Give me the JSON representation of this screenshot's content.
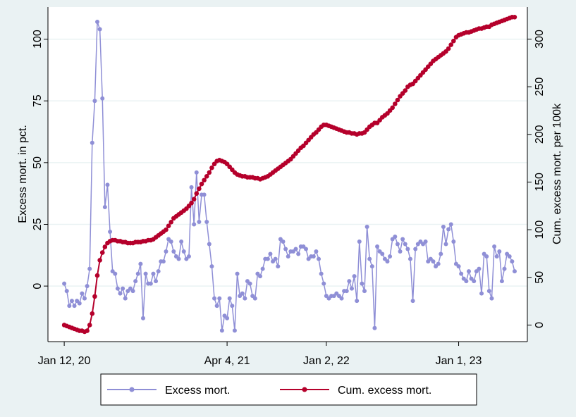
{
  "chart_data": {
    "type": "line",
    "y_axis_label": "Excess mort. in pct.",
    "y2_axis_label": "Cum. excess mort. per 100k",
    "x": [
      0,
      1,
      2,
      3,
      4,
      5,
      6,
      7,
      8,
      9,
      10,
      11,
      12,
      13,
      14,
      15,
      16,
      17,
      18,
      19,
      20,
      21,
      22,
      23,
      24,
      25,
      26,
      27,
      28,
      29,
      30,
      31,
      32,
      33,
      34,
      35,
      36,
      37,
      38,
      39,
      40,
      41,
      42,
      43,
      44,
      45,
      46,
      47,
      48,
      49,
      50,
      51,
      52,
      53,
      54,
      55,
      56,
      57,
      58,
      59,
      60,
      61,
      62,
      63,
      64,
      65,
      66,
      67,
      68,
      69,
      70,
      71,
      72,
      73,
      74,
      75,
      76,
      77,
      78,
      79,
      80,
      81,
      82,
      83,
      84,
      85,
      86,
      87,
      88,
      89,
      90,
      91,
      92,
      93,
      94,
      95,
      96,
      97,
      98,
      99,
      100,
      101,
      102,
      103,
      104,
      105,
      106,
      107,
      108,
      109,
      110,
      111,
      112,
      113,
      114,
      115,
      116,
      117,
      118,
      119,
      120,
      121,
      122,
      123,
      124,
      125,
      126,
      127,
      128,
      129,
      130,
      131,
      132,
      133,
      134,
      135,
      136,
      137,
      138,
      139,
      140,
      141,
      142,
      143,
      144,
      145,
      146,
      147,
      148,
      149,
      150,
      151,
      152,
      153,
      154,
      155,
      156,
      157,
      158,
      159,
      160,
      161,
      162,
      163,
      164,
      165,
      166,
      167,
      168,
      169,
      170,
      171,
      172,
      173,
      174,
      175,
      176,
      177
    ],
    "xlim": [
      -6.4,
      182
    ],
    "xticks": [
      {
        "value": 0,
        "label": "Jan 12, 20"
      },
      {
        "value": 64,
        "label": "Apr 4, 21"
      },
      {
        "value": 103,
        "label": "Jan 2, 22"
      },
      {
        "value": 155,
        "label": "Jan 1, 23"
      }
    ],
    "ylim": [
      -22.5,
      113
    ],
    "yticks": [
      0,
      25,
      50,
      75,
      100
    ],
    "y2lim": [
      -17.4,
      333.6
    ],
    "y2ticks": [
      0,
      50,
      100,
      150,
      200,
      250,
      300
    ],
    "grid": true,
    "legend_position": "bottom",
    "series": [
      {
        "name": "Excess mort.",
        "color": "#8f8fd6",
        "axis": "y",
        "values": [
          1,
          -2,
          -8,
          -6,
          -8,
          -6,
          -7,
          -3,
          -5,
          0,
          7,
          58,
          75,
          107,
          104,
          76,
          32,
          41,
          22,
          6,
          5,
          -1,
          -3,
          -1,
          -5,
          -2,
          -1,
          -2,
          2,
          5,
          9,
          -13,
          5,
          1,
          1,
          5,
          2,
          6,
          10,
          10,
          14,
          19,
          18,
          14,
          12,
          11,
          18,
          14,
          11,
          12,
          40,
          25,
          46,
          26,
          37,
          37,
          26,
          17,
          8,
          -5,
          -8,
          -5,
          -18,
          -12,
          -13,
          -5,
          -8,
          -18,
          5,
          -4,
          -3,
          -5,
          2,
          1,
          -4,
          -5,
          5,
          4,
          7,
          11,
          11,
          13,
          10,
          11,
          8,
          19,
          18,
          15,
          12,
          14,
          14,
          15,
          13,
          16,
          16,
          15,
          11,
          12,
          12,
          14,
          11,
          5,
          1,
          -4,
          -5,
          -4,
          -4,
          -3,
          -4,
          -5,
          -2,
          -2,
          2,
          -1,
          4,
          -6,
          18,
          1,
          -2,
          24,
          11,
          8,
          -17,
          16,
          14,
          13,
          11,
          10,
          12,
          19,
          20,
          17,
          14,
          19,
          17,
          15,
          11,
          -6,
          15,
          17,
          18,
          17,
          18,
          10,
          11,
          10,
          8,
          9,
          13,
          24,
          17,
          23,
          25,
          18,
          9,
          8,
          5,
          3,
          2,
          6,
          3,
          2,
          6,
          7,
          -3,
          13,
          12,
          -2,
          -5,
          16,
          12,
          14,
          2,
          7,
          13,
          12,
          10,
          6
        ]
      },
      {
        "name": "Cum. excess mort.",
        "color": "#b5002b",
        "axis": "y2",
        "values": [
          0,
          -1,
          -2,
          -3,
          -4,
          -5,
          -6,
          -6,
          -7,
          -6,
          0,
          12,
          30,
          52,
          68,
          76,
          82,
          86,
          88,
          89,
          89,
          88,
          88,
          87,
          87,
          86,
          86,
          86,
          87,
          87,
          87,
          88,
          88,
          89,
          89,
          90,
          92,
          94,
          96,
          98,
          100,
          104,
          108,
          112,
          114,
          116,
          118,
          120,
          122,
          125,
          128,
          132,
          138,
          143,
          148,
          152,
          156,
          160,
          165,
          169,
          172,
          173,
          172,
          171,
          169,
          166,
          163,
          160,
          158,
          157,
          156,
          156,
          155,
          155,
          155,
          154,
          154,
          153,
          154,
          155,
          156,
          158,
          160,
          162,
          164,
          166,
          168,
          170,
          172,
          174,
          177,
          180,
          183,
          186,
          188,
          191,
          194,
          197,
          200,
          202,
          205,
          208,
          210,
          210,
          209,
          208,
          207,
          206,
          205,
          204,
          203,
          202,
          202,
          201,
          201,
          200,
          201,
          201,
          202,
          205,
          208,
          210,
          212,
          212,
          215,
          218,
          220,
          222,
          225,
          228,
          232,
          236,
          240,
          243,
          246,
          250,
          252,
          253,
          256,
          259,
          262,
          265,
          268,
          271,
          274,
          277,
          279,
          281,
          283,
          285,
          287,
          290,
          294,
          298,
          302,
          304,
          305,
          306,
          307,
          307,
          308,
          309,
          310,
          311,
          311,
          312,
          313,
          313,
          315,
          316,
          317,
          318,
          319,
          320,
          321,
          322,
          323,
          323
        ]
      }
    ]
  }
}
